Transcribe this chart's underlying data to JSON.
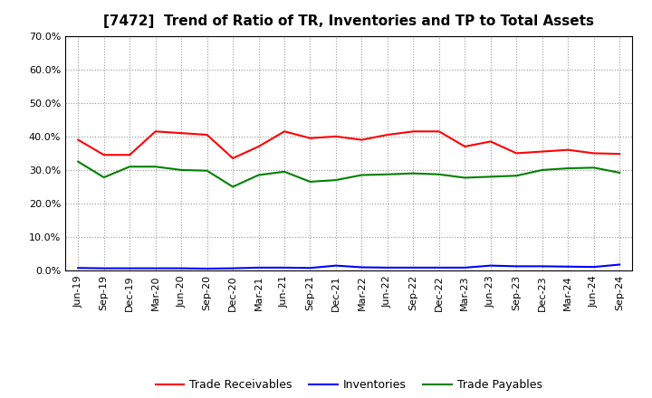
{
  "title": "[7472]  Trend of Ratio of TR, Inventories and TP to Total Assets",
  "x_labels": [
    "Jun-19",
    "Sep-19",
    "Dec-19",
    "Mar-20",
    "Jun-20",
    "Sep-20",
    "Dec-20",
    "Mar-21",
    "Jun-21",
    "Sep-21",
    "Dec-21",
    "Mar-22",
    "Jun-22",
    "Sep-22",
    "Dec-22",
    "Mar-23",
    "Jun-23",
    "Sep-23",
    "Dec-23",
    "Mar-24",
    "Jun-24",
    "Sep-24"
  ],
  "trade_receivables": [
    0.39,
    0.345,
    0.345,
    0.415,
    0.41,
    0.405,
    0.335,
    0.37,
    0.415,
    0.395,
    0.4,
    0.39,
    0.405,
    0.415,
    0.415,
    0.37,
    0.385,
    0.35,
    0.355,
    0.36,
    0.35,
    0.348
  ],
  "inventories": [
    0.008,
    0.007,
    0.007,
    0.007,
    0.007,
    0.006,
    0.007,
    0.009,
    0.009,
    0.008,
    0.015,
    0.01,
    0.009,
    0.009,
    0.009,
    0.009,
    0.015,
    0.013,
    0.013,
    0.012,
    0.011,
    0.018
  ],
  "trade_payables": [
    0.325,
    0.278,
    0.31,
    0.31,
    0.3,
    0.298,
    0.25,
    0.285,
    0.295,
    0.265,
    0.27,
    0.285,
    0.287,
    0.29,
    0.287,
    0.277,
    0.28,
    0.283,
    0.3,
    0.305,
    0.307,
    0.292
  ],
  "tr_color": "#FF0000",
  "inv_color": "#0000FF",
  "tp_color": "#008000",
  "background_color": "#FFFFFF",
  "grid_color": "#999999",
  "ylim": [
    0.0,
    0.7
  ],
  "yticks": [
    0.0,
    0.1,
    0.2,
    0.3,
    0.4,
    0.5,
    0.6,
    0.7
  ],
  "legend_labels": [
    "Trade Receivables",
    "Inventories",
    "Trade Payables"
  ],
  "title_fontsize": 11,
  "tick_fontsize": 8,
  "legend_fontsize": 9
}
